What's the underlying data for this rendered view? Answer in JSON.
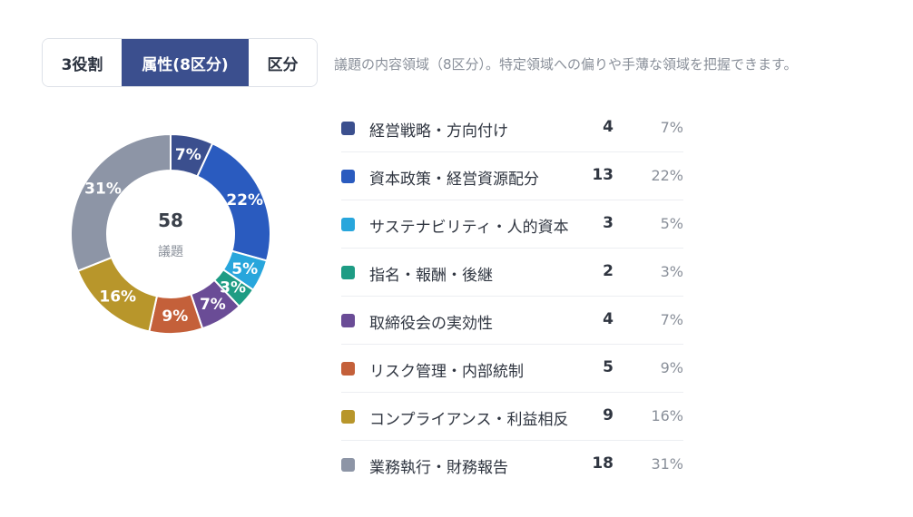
{
  "tabs": [
    {
      "label": "3役割",
      "active": false
    },
    {
      "label": "属性(8区分)",
      "active": true
    },
    {
      "label": "区分",
      "active": false
    }
  ],
  "description": "議題の内容領域（8区分）。特定領域への偏りや手薄な領域を把握できます。",
  "center": {
    "value": "58",
    "unit": "議題"
  },
  "chart_data": {
    "type": "pie",
    "style": "donut",
    "total": 58,
    "categories": [
      "経営戦略・方向付け",
      "資本政策・経営資源配分",
      "サステナビリティ・人的資本",
      "指名・報酬・後継",
      "取締役会の実効性",
      "リスク管理・内部統制",
      "コンプライアンス・利益相反",
      "業務執行・財務報告"
    ],
    "values": [
      4,
      13,
      3,
      2,
      4,
      5,
      9,
      18
    ],
    "percent_labels": [
      "7%",
      "22%",
      "5%",
      "3%",
      "7%",
      "9%",
      "16%",
      "31%"
    ],
    "colors": [
      "#3b4f8e",
      "#2a5bbf",
      "#28a6dc",
      "#1e9c84",
      "#6a4c96",
      "#c4603a",
      "#b8962b",
      "#8d95a6"
    ]
  }
}
